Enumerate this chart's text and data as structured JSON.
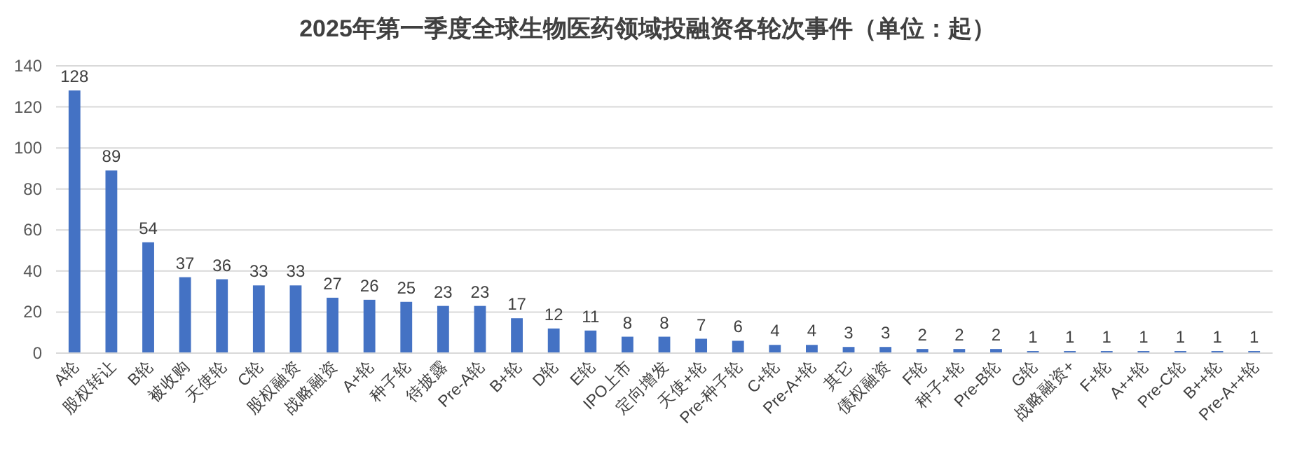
{
  "chart_data": {
    "type": "bar",
    "title": "2025年第一季度全球生物医药领域投融资各轮次事件（单位：起）",
    "categories": [
      "A轮",
      "股权转让",
      "B轮",
      "被收购",
      "天使轮",
      "C轮",
      "股权融资",
      "战略融资",
      "A+轮",
      "种子轮",
      "待披露",
      "Pre-A轮",
      "B+轮",
      "D轮",
      "E轮",
      "IPO上市",
      "定向增发",
      "天使+轮",
      "Pre-种子轮",
      "C+轮",
      "Pre-A+轮",
      "其它",
      "债权融资",
      "F轮",
      "种子+轮",
      "Pre-B轮",
      "G轮",
      "战略融资+",
      "F+轮",
      "A++轮",
      "Pre-C轮",
      "B++轮",
      "Pre-A++轮"
    ],
    "values": [
      128,
      89,
      54,
      37,
      36,
      33,
      33,
      27,
      26,
      25,
      23,
      23,
      17,
      12,
      11,
      8,
      8,
      7,
      6,
      4,
      4,
      3,
      3,
      2,
      2,
      2,
      1,
      1,
      1,
      1,
      1,
      1,
      1
    ],
    "color": "#4472c4",
    "ylim": [
      0,
      140
    ],
    "yticks": [
      0,
      20,
      40,
      60,
      80,
      100,
      120,
      140
    ],
    "grid": "y",
    "data_labels": true
  }
}
